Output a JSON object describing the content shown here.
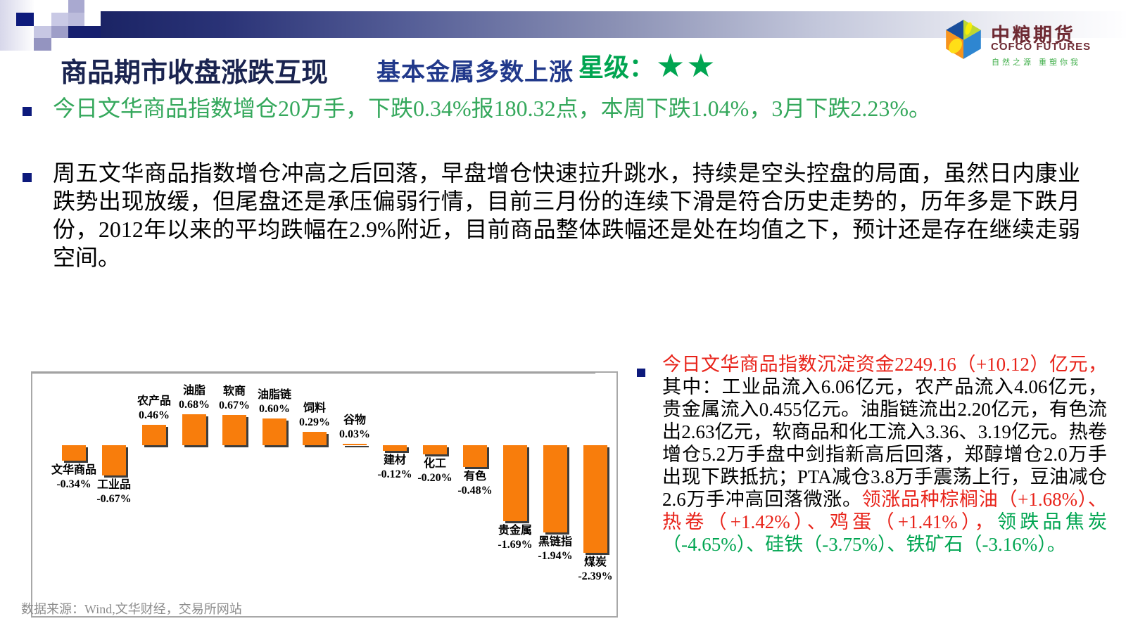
{
  "header": {
    "title_part1": "商品期市收盘涨跌互现",
    "title_part2": "基本金属多数上涨",
    "star_label": "星级：",
    "stars": "★★",
    "colors": {
      "title1": "#1A2450",
      "title2": "#21398B",
      "star": "#00A551"
    }
  },
  "logo": {
    "name_cn": "中粮期货",
    "name_en": "COFCO FUTURES",
    "tagline": "自然之源 重塑你我",
    "brand_color": "#6E2A33",
    "tagline_color": "#3FAE49"
  },
  "bullets": [
    {
      "text": "今日文华商品指数增仓20万手，下跌0.34%报180.32点，本周下跌1.04%，3月下跌2.23%。",
      "color": "#35A85C"
    },
    {
      "text": "周五文华商品指数增仓冲高之后回落，早盘增仓快速拉升跳水，持续是空头控盘的局面，虽然日内康业跌势出现放缓，但尾盘还是承压偏弱行情，目前三月份的连续下滑是符合历史走势的，历年多是下跌月份，2012年以来的平均跌幅在2.9%附近，目前商品整体跌幅还是处在均值之下，预计还是存在继续走弱空间。",
      "color": "#000000"
    }
  ],
  "chart_data": {
    "type": "bar",
    "title": "",
    "xlabel": "",
    "ylabel": "",
    "categories": [
      "文华商品",
      "工业品",
      "农产品",
      "油脂",
      "软商",
      "油脂链",
      "饲料",
      "谷物",
      "建材",
      "化工",
      "有色",
      "贵金属",
      "黑链指",
      "煤炭"
    ],
    "values": [
      -0.34,
      -0.67,
      0.46,
      0.68,
      0.67,
      0.6,
      0.29,
      0.03,
      -0.12,
      -0.2,
      -0.48,
      -1.69,
      -1.94,
      -2.39
    ],
    "labels": [
      "-0.34%",
      "-0.67%",
      "0.46%",
      "0.68%",
      "0.67%",
      "0.60%",
      "0.29%",
      "0.03%",
      "-0.12%",
      "-0.20%",
      "-0.48%",
      "-1.69%",
      "-1.94%",
      "-2.39%"
    ],
    "bar_color": "#F87D0C",
    "shadow_color": "#3C3C3C",
    "axis_color": "#7F7F7F",
    "label_color": "#000000",
    "ylim": [
      -2.6,
      1.0
    ],
    "grid": false,
    "legend": false,
    "source": "数据来源：Wind,文华财经，交易所网站"
  },
  "right_panel": {
    "segments": [
      {
        "text": "今日文华商品指数沉淀资金2249.16（+10.12）亿元，",
        "color": "#E8231A"
      },
      {
        "text": "其中：工业品流入6.06亿元，农产品流入4.06亿元，贵金属流入0.455亿元。油脂链流出2.20亿元，有色流出2.63亿元，软商品和化工流入3.36、3.19亿元。热卷增仓5.2万手盘中剑指新高后回落，郑醇增仓2.0万手出现下跌抵抗；PTA减仓3.8万手震荡上行，豆油减仓2.6万手冲高回落微涨。",
        "color": "#000000"
      },
      {
        "text": "领涨品种棕榈油（+1.68%）、热卷（+1.42%）、鸡蛋（+1.41%），",
        "color": "#E8231A"
      },
      {
        "text": "领跌品焦炭（-4.65%）、硅铁（-3.75%）、铁矿石（-3.16%）。",
        "color": "#00A551"
      }
    ]
  }
}
